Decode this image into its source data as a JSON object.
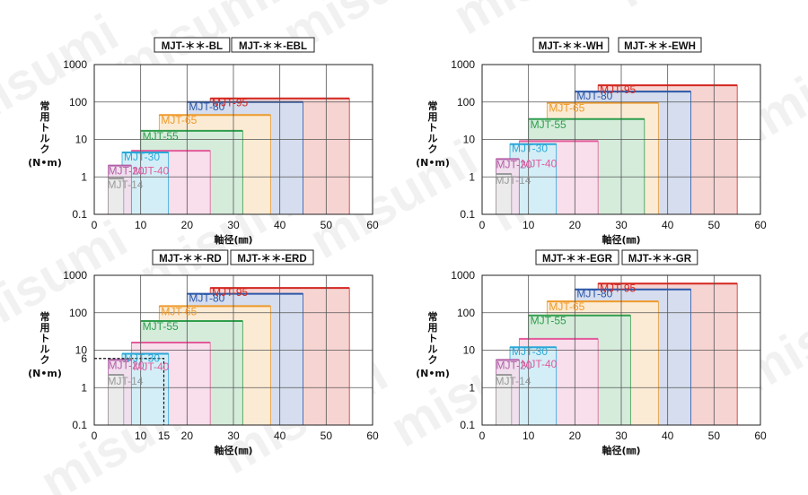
{
  "watermark": "misumi",
  "colors": {
    "MJT-14": "#9a9a9a",
    "MJT-20": "#b25fa6",
    "MJT-30": "#2aa8d8",
    "MJT-40": "#e35a9a",
    "MJT-55": "#2f9e4c",
    "MJT-65": "#ee9a2a",
    "MJT-80": "#2b57a8",
    "MJT-95": "#d3261f"
  },
  "chart_data": [
    {
      "type": "bar",
      "title_boxes": [
        "MJT-＊＊-BL",
        "MJT-＊＊-EBL"
      ],
      "ylabel": "常用トルク\n(N•m)",
      "xlabel": "軸径(㎜)",
      "xlim": [
        0,
        60
      ],
      "ylim": [
        0.1,
        1000
      ],
      "yscale": "log",
      "xticks": [
        "0",
        "10",
        "20",
        "30",
        "40",
        "50",
        "60"
      ],
      "yticks": [
        "0.1",
        "1",
        "10",
        "100",
        "1000"
      ],
      "grid": true,
      "series": [
        {
          "name": "MJT-14",
          "x": [
            3,
            6.35
          ],
          "torque": 0.9
        },
        {
          "name": "MJT-20",
          "x": [
            3,
            8
          ],
          "torque": 2
        },
        {
          "name": "MJT-30",
          "x": [
            6,
            16
          ],
          "torque": 4.5
        },
        {
          "name": "MJT-40",
          "x": [
            8,
            25
          ],
          "torque": 5
        },
        {
          "name": "MJT-55",
          "x": [
            10,
            32
          ],
          "torque": 17
        },
        {
          "name": "MJT-65",
          "x": [
            14,
            38
          ],
          "torque": 45
        },
        {
          "name": "MJT-80",
          "x": [
            20,
            45
          ],
          "torque": 100
        },
        {
          "name": "MJT-95",
          "x": [
            25,
            55
          ],
          "torque": 125
        }
      ]
    },
    {
      "type": "bar",
      "title_boxes": [
        "MJT-＊＊-WH",
        "MJT-＊＊-EWH"
      ],
      "ylabel": "常用トルク\n(N•m)",
      "xlabel": "軸径(㎜)",
      "xlim": [
        0,
        60
      ],
      "ylim": [
        0.1,
        1000
      ],
      "yscale": "log",
      "xticks": [
        "0",
        "10",
        "20",
        "30",
        "40",
        "50",
        "60"
      ],
      "yticks": [
        "0.1",
        "1",
        "10",
        "100",
        "1000"
      ],
      "grid": true,
      "series": [
        {
          "name": "MJT-14",
          "x": [
            3,
            6.35
          ],
          "torque": 1.2
        },
        {
          "name": "MJT-20",
          "x": [
            3,
            8
          ],
          "torque": 3
        },
        {
          "name": "MJT-30",
          "x": [
            6,
            16
          ],
          "torque": 7.5
        },
        {
          "name": "MJT-40",
          "x": [
            8,
            25
          ],
          "torque": 9
        },
        {
          "name": "MJT-55",
          "x": [
            10,
            35
          ],
          "torque": 35
        },
        {
          "name": "MJT-65",
          "x": [
            14,
            38
          ],
          "torque": 95
        },
        {
          "name": "MJT-80",
          "x": [
            20,
            45
          ],
          "torque": 190
        },
        {
          "name": "MJT-95",
          "x": [
            25,
            55
          ],
          "torque": 280
        }
      ]
    },
    {
      "type": "bar",
      "title_boxes": [
        "MJT-＊＊-RD",
        "MJT-＊＊-ERD"
      ],
      "ylabel": "常用トルク\n(N•m)",
      "xlabel": "軸径(㎜)",
      "xlim": [
        0,
        60
      ],
      "ylim": [
        0.1,
        1000
      ],
      "yscale": "log",
      "xticks": [
        "0",
        "10",
        "15",
        "20",
        "30",
        "40",
        "50",
        "60"
      ],
      "yticks": [
        "0.1",
        "1",
        "6",
        "10",
        "100",
        "1000"
      ],
      "grid": true,
      "annotation": {
        "type": "dashed-box",
        "x": [
          3,
          15
        ],
        "torque": 6
      },
      "series": [
        {
          "name": "MJT-14",
          "x": [
            3,
            6.35
          ],
          "torque": 2.2
        },
        {
          "name": "MJT-20",
          "x": [
            3,
            8
          ],
          "torque": 5.5
        },
        {
          "name": "MJT-30",
          "x": [
            6,
            16
          ],
          "torque": 8
        },
        {
          "name": "MJT-40",
          "x": [
            8,
            25
          ],
          "torque": 16
        },
        {
          "name": "MJT-55",
          "x": [
            10,
            32
          ],
          "torque": 60
        },
        {
          "name": "MJT-65",
          "x": [
            14,
            38
          ],
          "torque": 150
        },
        {
          "name": "MJT-80",
          "x": [
            20,
            45
          ],
          "torque": 320
        },
        {
          "name": "MJT-95",
          "x": [
            25,
            55
          ],
          "torque": 460
        }
      ]
    },
    {
      "type": "bar",
      "title_boxes": [
        "MJT-＊＊-EGR",
        "MJT-＊＊-GR"
      ],
      "ylabel": "常用トルク\n(N•m)",
      "xlabel": "軸径(㎜)",
      "xlim": [
        0,
        60
      ],
      "ylim": [
        0.1,
        1000
      ],
      "yscale": "log",
      "xticks": [
        "0",
        "10",
        "20",
        "30",
        "40",
        "50",
        "60"
      ],
      "yticks": [
        "0.1",
        "1",
        "10",
        "100",
        "1000"
      ],
      "grid": true,
      "series": [
        {
          "name": "MJT-14",
          "x": [
            3,
            6.35
          ],
          "torque": 2.2
        },
        {
          "name": "MJT-20",
          "x": [
            3,
            8
          ],
          "torque": 5.5
        },
        {
          "name": "MJT-30",
          "x": [
            6,
            16
          ],
          "torque": 12
        },
        {
          "name": "MJT-40",
          "x": [
            8,
            25
          ],
          "torque": 20
        },
        {
          "name": "MJT-55",
          "x": [
            10,
            32
          ],
          "torque": 85
        },
        {
          "name": "MJT-65",
          "x": [
            14,
            38
          ],
          "torque": 200
        },
        {
          "name": "MJT-80",
          "x": [
            20,
            45
          ],
          "torque": 420
        },
        {
          "name": "MJT-95",
          "x": [
            25,
            55
          ],
          "torque": 600
        }
      ]
    }
  ]
}
